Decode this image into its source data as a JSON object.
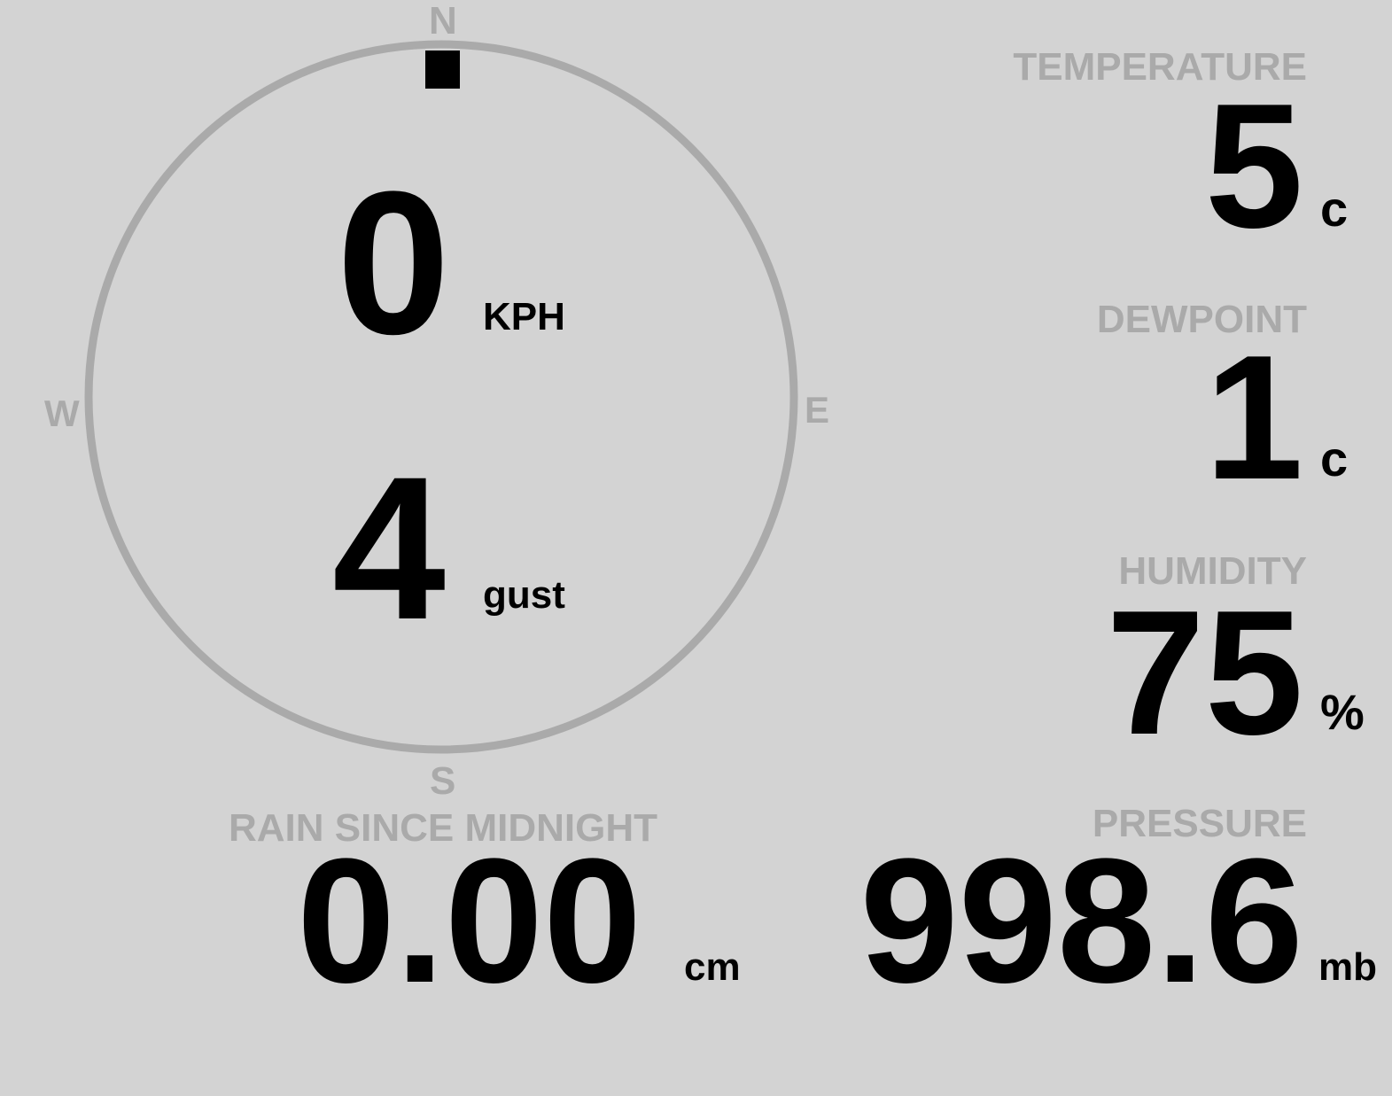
{
  "compass": {
    "north": "N",
    "south": "S",
    "east": "E",
    "west": "W",
    "direction_deg": 0,
    "ring_color": "#aaaaaa",
    "pointer_icon": "wind-direction-marker"
  },
  "wind": {
    "speed": "0",
    "speed_unit": "KPH",
    "gust": "4",
    "gust_unit": "gust"
  },
  "temperature": {
    "label": "TEMPERATURE",
    "value": "5",
    "unit": "c"
  },
  "dewpoint": {
    "label": "DEWPOINT",
    "value": "1",
    "unit": "c"
  },
  "humidity": {
    "label": "HUMIDITY",
    "value": "75",
    "unit": "%"
  },
  "pressure": {
    "label": "PRESSURE",
    "value": "998.6",
    "unit": "mb"
  },
  "rain": {
    "label": "RAIN SINCE MIDNIGHT",
    "value": "0.00",
    "unit": "cm"
  },
  "colors": {
    "background": "#d3d3d3",
    "label": "#aaaaaa",
    "value": "#000000"
  }
}
